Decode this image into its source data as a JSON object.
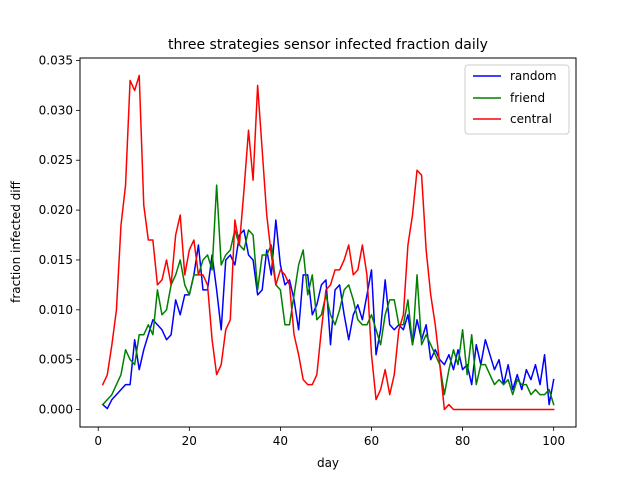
{
  "chart_data": {
    "type": "line",
    "title": "three strategies sensor infected fraction daily",
    "xlabel": "day",
    "ylabel": "fraction infected diff",
    "xlim": [
      -4.0,
      104.9
    ],
    "ylim": [
      -0.00175,
      0.03525
    ],
    "xticks": [
      0,
      20,
      40,
      60,
      80,
      100
    ],
    "xtick_labels": [
      "0",
      "20",
      "40",
      "60",
      "80",
      "100"
    ],
    "yticks": [
      0,
      0.005,
      0.01,
      0.015,
      0.02,
      0.025,
      0.03,
      0.035
    ],
    "ytick_labels": [
      "0.000",
      "0.005",
      "0.010",
      "0.015",
      "0.020",
      "0.025",
      "0.030",
      "0.035"
    ],
    "legend": "top-right",
    "grid": false,
    "x": [
      1,
      2,
      3,
      4,
      5,
      6,
      7,
      8,
      9,
      10,
      11,
      12,
      13,
      14,
      15,
      16,
      17,
      18,
      19,
      20,
      21,
      22,
      23,
      24,
      25,
      26,
      27,
      28,
      29,
      30,
      31,
      32,
      33,
      34,
      35,
      36,
      37,
      38,
      39,
      40,
      41,
      42,
      43,
      44,
      45,
      46,
      47,
      48,
      49,
      50,
      51,
      52,
      53,
      54,
      55,
      56,
      57,
      58,
      59,
      60,
      61,
      62,
      63,
      64,
      65,
      66,
      67,
      68,
      69,
      70,
      71,
      72,
      73,
      74,
      75,
      76,
      77,
      78,
      79,
      80,
      81,
      82,
      83,
      84,
      85,
      86,
      87,
      88,
      89,
      90,
      91,
      92,
      93,
      94,
      95,
      96,
      97,
      98,
      99,
      100
    ],
    "series": [
      {
        "name": "random",
        "color": "#0000ff",
        "values": [
          0.0005,
          0.0001,
          0.001,
          0.0015,
          0.002,
          0.0025,
          0.0025,
          0.007,
          0.004,
          0.006,
          0.0075,
          0.009,
          0.0085,
          0.008,
          0.007,
          0.0075,
          0.011,
          0.0095,
          0.0115,
          0.0115,
          0.0135,
          0.0165,
          0.012,
          0.012,
          0.0155,
          0.012,
          0.008,
          0.015,
          0.0155,
          0.0145,
          0.0175,
          0.018,
          0.0155,
          0.015,
          0.0115,
          0.012,
          0.016,
          0.0135,
          0.019,
          0.0145,
          0.0125,
          0.013,
          0.011,
          0.008,
          0.0135,
          0.0135,
          0.0095,
          0.0105,
          0.0125,
          0.013,
          0.0065,
          0.012,
          0.0125,
          0.0095,
          0.007,
          0.0095,
          0.0105,
          0.009,
          0.0115,
          0.014,
          0.0055,
          0.008,
          0.013,
          0.0085,
          0.008,
          0.0085,
          0.008,
          0.0095,
          0.0065,
          0.009,
          0.007,
          0.0085,
          0.005,
          0.006,
          0.005,
          0.0045,
          0.0055,
          0.004,
          0.006,
          0.004,
          0.0045,
          0.0025,
          0.0065,
          0.0045,
          0.007,
          0.0055,
          0.004,
          0.005,
          0.0025,
          0.0045,
          0.002,
          0.0035,
          0.002,
          0.004,
          0.003,
          0.0045,
          0.0025,
          0.0055,
          0.0005,
          0.003
        ]
      },
      {
        "name": "friend",
        "color": "#008000",
        "values": [
          0.0005,
          0.001,
          0.0015,
          0.0025,
          0.0035,
          0.006,
          0.005,
          0.0045,
          0.0075,
          0.0075,
          0.0085,
          0.0075,
          0.012,
          0.0095,
          0.01,
          0.0125,
          0.0135,
          0.015,
          0.0125,
          0.0115,
          0.0135,
          0.0135,
          0.015,
          0.0155,
          0.014,
          0.0225,
          0.0145,
          0.0155,
          0.016,
          0.018,
          0.0165,
          0.016,
          0.018,
          0.0175,
          0.012,
          0.0155,
          0.0155,
          0.0165,
          0.0125,
          0.012,
          0.0085,
          0.0085,
          0.0115,
          0.0145,
          0.016,
          0.0115,
          0.0135,
          0.009,
          0.0095,
          0.0115,
          0.0095,
          0.0085,
          0.01,
          0.012,
          0.0125,
          0.011,
          0.009,
          0.0085,
          0.0085,
          0.0095,
          0.008,
          0.0065,
          0.0095,
          0.011,
          0.011,
          0.0085,
          0.0085,
          0.011,
          0.0065,
          0.0135,
          0.0065,
          0.0075,
          0.0065,
          0.0055,
          0.0045,
          0.0015,
          0.004,
          0.006,
          0.0045,
          0.008,
          0.0035,
          0.0075,
          0.0025,
          0.0045,
          0.0045,
          0.0035,
          0.0025,
          0.003,
          0.0025,
          0.003,
          0.0015,
          0.003,
          0.0025,
          0.0025,
          0.0015,
          0.002,
          0.0015,
          0.0015,
          0.002,
          0.0005
        ]
      },
      {
        "name": "central",
        "color": "#ff0000",
        "values": [
          0.0025,
          0.0035,
          0.0065,
          0.01,
          0.0185,
          0.0225,
          0.033,
          0.032,
          0.0335,
          0.0205,
          0.017,
          0.017,
          0.0125,
          0.013,
          0.015,
          0.0125,
          0.0175,
          0.0195,
          0.0135,
          0.016,
          0.017,
          0.0135,
          0.0135,
          0.0125,
          0.007,
          0.0035,
          0.0045,
          0.008,
          0.009,
          0.019,
          0.0165,
          0.022,
          0.028,
          0.023,
          0.0325,
          0.026,
          0.0195,
          0.0155,
          0.0125,
          0.014,
          0.0135,
          0.0125,
          0.0075,
          0.0055,
          0.003,
          0.0025,
          0.0025,
          0.0035,
          0.008,
          0.012,
          0.0125,
          0.014,
          0.014,
          0.015,
          0.0165,
          0.0135,
          0.014,
          0.0165,
          0.0135,
          0.0055,
          0.001,
          0.002,
          0.004,
          0.0015,
          0.0035,
          0.008,
          0.0095,
          0.0165,
          0.0195,
          0.024,
          0.0235,
          0.016,
          0.0115,
          0.0085,
          0.0045,
          0.0,
          0.0005,
          0.0,
          0.0,
          0.0,
          0.0,
          0.0,
          0.0,
          0.0,
          0.0,
          0.0,
          0.0,
          0.0,
          0.0,
          0.0,
          0.0,
          0.0,
          0.0,
          0.0,
          0.0,
          0.0,
          0.0,
          0.0,
          0.0,
          0.0
        ]
      }
    ]
  }
}
